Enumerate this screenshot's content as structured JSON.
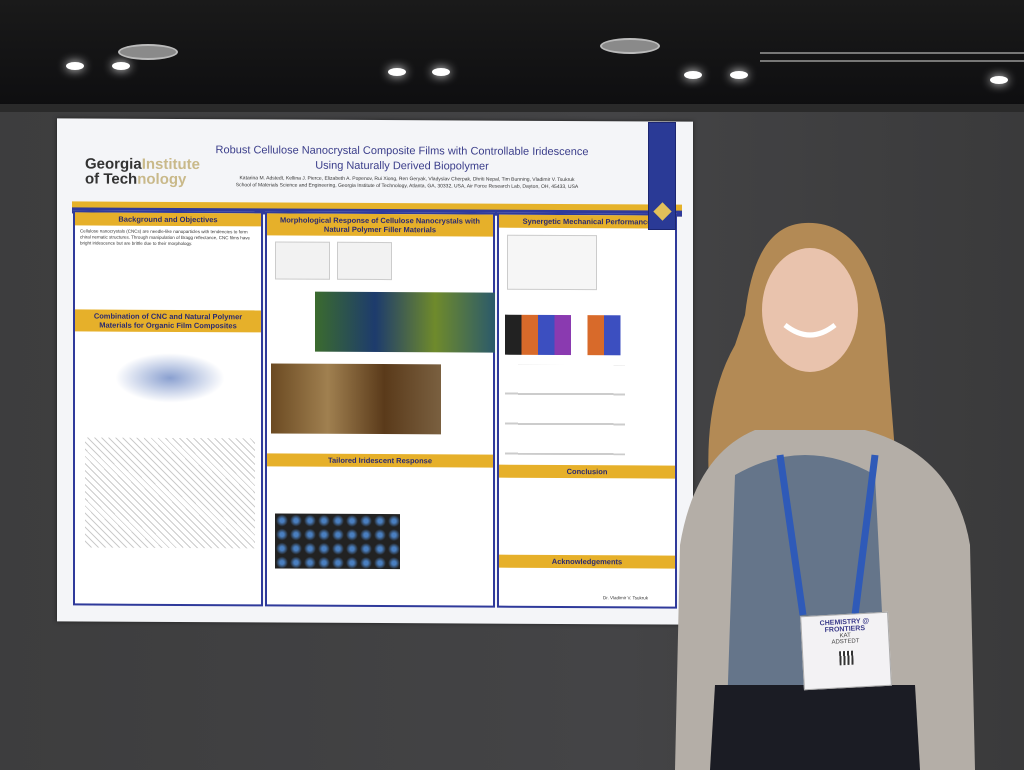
{
  "poster": {
    "logo": "Georgia Institute of Technology",
    "title_line1": "Robust Cellulose Nanocrystal Composite Films with Controllable Iridescence",
    "title_line2": "Using Naturally Derived Biopolymer",
    "authors": "Katarina M. Adstedt, Kellina J. Pierce, Elizabeth A. Popenov, Rui Xiong, Ren Geryak, Vladyslav Cherpak, Dhriti Nepal, Tim Bunning, Vladimir V. Tsukruk",
    "affiliation": "School of Materials Science and Engineering, Georgia Institute of Technology, Atlanta, GA, 30332, USA, Air Force Research Lab, Dayton, OH, 45433, USA",
    "sections": {
      "background": "Background and Objectives",
      "combination": "Combination of CNC and Natural Polymer Materials for Organic Film Composites",
      "morphological": "Morphological Response of Cellulose Nanocrystals with Natural Polymer Filler Materials",
      "iridescent": "Tailored Iridescent Response",
      "mechanical": "Synergetic Mechanical Performance",
      "conclusion": "Conclusion",
      "acknowledgements": "Acknowledgements"
    },
    "background_text": "Cellulose nanocrystals (CNCs) are needle-like nanoparticles with tendencies to form chiral nematic structures. Through manipulation of Bragg reflectance, CNC films have bright iridescence but are brittle due to their morphology.",
    "footer": "Dr. Vladimir V. Tsukruk"
  },
  "badge": {
    "event": "CHEMISTRY @ FRONTIERS",
    "first_name": "KAT",
    "last_name": "ADSTEDT"
  }
}
